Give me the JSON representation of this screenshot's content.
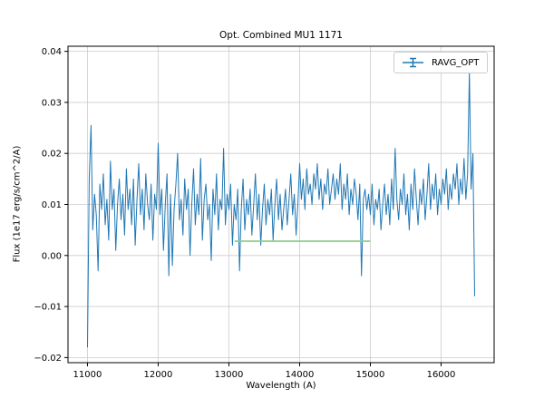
{
  "figure": {
    "background": "#ffffff",
    "grid_color": "#cccccc",
    "spine_color": "#000000"
  },
  "legend": {
    "label": "RAVG_OPT",
    "position": "upper right"
  },
  "chart_data": {
    "type": "line",
    "title": "Opt. Combined MU1 1171",
    "xlabel": "Wavelength (A)",
    "ylabel": "Flux (1e17 erg/s/cm^2/A)",
    "xlim": [
      10725,
      16750
    ],
    "ylim": [
      -0.021,
      0.041
    ],
    "xticks": [
      11000,
      12000,
      13000,
      14000,
      15000,
      16000
    ],
    "yticks": [
      -0.02,
      -0.01,
      0.0,
      0.01,
      0.02,
      0.03,
      0.04
    ],
    "grid": true,
    "series": [
      {
        "name": "RAVG_OPT",
        "color": "#1f77b4",
        "x_start": 11000,
        "x_step": 25,
        "y_scale": 0.001,
        "values": [
          -18,
          15,
          25.5,
          5,
          12,
          8,
          -3,
          14,
          9,
          16,
          6,
          11,
          3,
          18.5,
          9,
          13,
          1,
          10,
          15,
          7,
          12,
          4,
          17,
          9,
          13,
          6,
          15,
          2,
          11,
          18,
          8,
          13,
          5,
          16,
          10,
          7,
          14,
          3,
          12,
          9,
          22,
          8,
          13,
          1,
          10,
          16,
          -4,
          12,
          -2,
          9,
          14,
          20,
          7,
          11,
          4,
          15,
          9,
          13,
          0,
          10,
          17,
          6,
          12,
          8,
          19,
          3,
          11,
          14,
          7,
          10,
          -1,
          13,
          8,
          16,
          5,
          11,
          9,
          21,
          6,
          12,
          9,
          14,
          2,
          10,
          7,
          13,
          -3,
          9,
          15,
          5,
          11,
          8,
          13,
          4,
          10,
          16,
          7,
          12,
          2,
          9,
          14,
          6,
          11,
          8,
          13,
          3,
          10,
          15,
          7,
          12,
          5,
          9,
          13,
          6,
          11,
          16,
          8,
          12,
          4,
          10,
          18,
          11,
          15,
          9,
          17,
          12,
          14,
          10,
          16,
          13,
          18,
          11,
          15,
          9,
          14,
          12,
          17,
          10,
          13,
          16,
          11,
          15,
          12,
          18,
          9,
          14,
          11,
          16,
          8,
          13,
          10,
          15,
          12,
          7,
          14,
          -4,
          11,
          13,
          9,
          12,
          8,
          14,
          6,
          11,
          9,
          13,
          5,
          10,
          14,
          8,
          12,
          6,
          15,
          9,
          21,
          11,
          7,
          13,
          10,
          16,
          8,
          12,
          5,
          14,
          9,
          17,
          11,
          6,
          13,
          10,
          15,
          7,
          12,
          18,
          9,
          14,
          11,
          16,
          8,
          13,
          10,
          15,
          12,
          17,
          9,
          14,
          11,
          16,
          13,
          18,
          10,
          15,
          12,
          19,
          11,
          16,
          36,
          13,
          20,
          -8
        ]
      },
      {
        "name": "overlay-segment",
        "color": "#8fcd8a",
        "x": [
          13080,
          15000
        ],
        "y": [
          0.0028,
          0.0028
        ]
      }
    ]
  }
}
